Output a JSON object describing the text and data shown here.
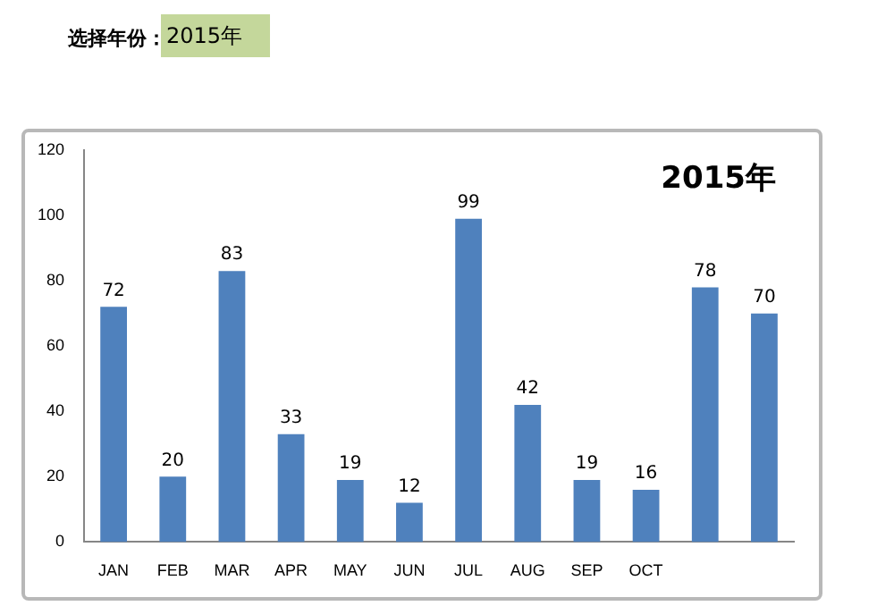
{
  "chart_data": {
    "type": "bar",
    "title": "2015年",
    "categories": [
      "JAN",
      "FEB",
      "MAR",
      "APR",
      "MAY",
      "JUN",
      "JUL",
      "AUG",
      "SEP",
      "OCT",
      null,
      null
    ],
    "values": [
      72,
      20,
      83,
      33,
      19,
      12,
      99,
      42,
      19,
      16,
      78,
      70
    ],
    "color": "#4f81bd",
    "ylim": [
      0,
      120
    ],
    "yticks": [
      0,
      20,
      40,
      60,
      80,
      100,
      120
    ],
    "grid": false,
    "data_labels": true,
    "annotations": [
      "选择年份：",
      "2015年"
    ]
  }
}
